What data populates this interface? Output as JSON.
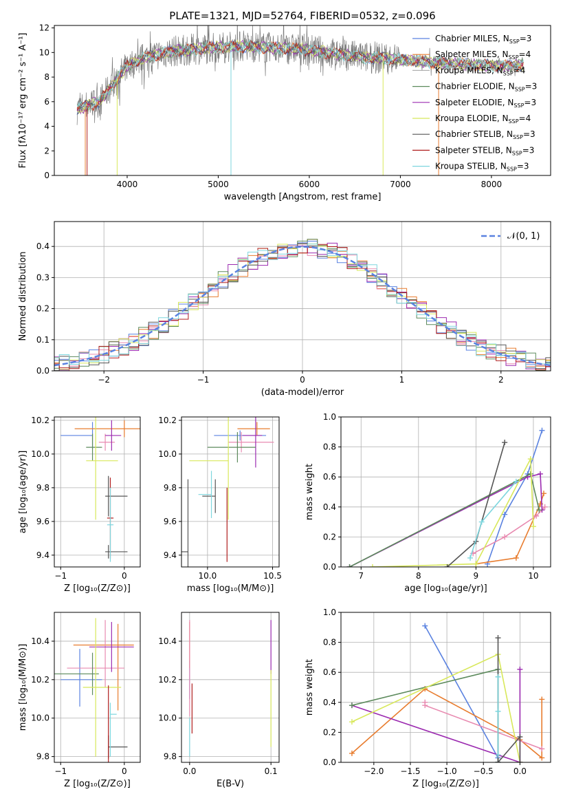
{
  "colors": {
    "chabrier_miles": "#5a82e0",
    "salpeter_miles": "#e87c2e",
    "kroupa_miles": "#b0b0b0",
    "chabrier_elodie": "#5c8a5c",
    "salpeter_elodie": "#9b2ab0",
    "kroupa_elodie": "#d8e85a",
    "chabrier_stelib": "#555555",
    "salpeter_stelib": "#b01c1c",
    "kroupa_stelib": "#7dd6de",
    "pink": "#e88ab0",
    "spectrum": "#7a7a7a"
  },
  "chart_data": [
    {
      "id": "spectrum",
      "type": "line",
      "title": "PLATE=1321, MJD=52764, FIBERID=0532, z=0.096",
      "xlabel": "wavelength [Angstrom, rest frame]",
      "ylabel": "Flux [fλ10⁻¹⁷ erg cm⁻² s⁻¹ A⁻¹]",
      "xlim": [
        3200,
        8650
      ],
      "ylim": [
        0,
        12.2
      ],
      "xticks": [
        "4000",
        "5000",
        "6000",
        "7000",
        "8000"
      ],
      "yticks": [
        "0",
        "2",
        "4",
        "6",
        "8",
        "10",
        "12"
      ],
      "legend_position": "right",
      "legend": [
        {
          "label": "Chabrier MILES, N",
          "sub": "SSP",
          "suffix": "=3",
          "color": "#5a82e0"
        },
        {
          "label": "Salpeter MILES, N",
          "sub": "SSP",
          "suffix": "=4",
          "color": "#e87c2e"
        },
        {
          "label": "Kroupa MILES, N",
          "sub": "SSP",
          "suffix": "=4",
          "color": "#b0b0b0"
        },
        {
          "label": "Chabrier ELODIE, N",
          "sub": "SSP",
          "suffix": "=3",
          "color": "#5c8a5c"
        },
        {
          "label": "Salpeter ELODIE, N",
          "sub": "SSP",
          "suffix": "=3",
          "color": "#9b2ab0"
        },
        {
          "label": "Kroupa ELODIE, N",
          "sub": "SSP",
          "suffix": "=4",
          "color": "#d8e85a"
        },
        {
          "label": "Chabrier STELIB, N",
          "sub": "SSP",
          "suffix": "=3",
          "color": "#555555"
        },
        {
          "label": "Salpeter STELIB, N",
          "sub": "SSP",
          "suffix": "=3",
          "color": "#b01c1c"
        },
        {
          "label": "Kroupa STELIB, N",
          "sub": "SSP",
          "suffix": "=3",
          "color": "#7dd6de"
        }
      ],
      "continuum": {
        "x": [
          3450,
          3700,
          3850,
          4000,
          4200,
          4500,
          4800,
          5000,
          5200,
          5500,
          5800,
          6000,
          6300,
          6600,
          6900,
          7200,
          7500,
          7800,
          8100,
          8350
        ],
        "y": [
          5.4,
          6.0,
          7.5,
          8.9,
          9.6,
          10.1,
          10.3,
          10.4,
          10.5,
          10.4,
          10.3,
          10.2,
          9.9,
          9.6,
          9.5,
          9.3,
          9.1,
          9.0,
          8.9,
          9.0
        ]
      }
    },
    {
      "id": "residuals",
      "type": "histogram",
      "xlabel": "(data-model)/error",
      "ylabel": "Normed distribution",
      "xlim": [
        -2.5,
        2.5
      ],
      "ylim": [
        0,
        0.48
      ],
      "xticks": [
        "−2",
        "−1",
        "0",
        "1",
        "2"
      ],
      "yticks": [
        "0.0",
        "0.1",
        "0.2",
        "0.3",
        "0.4"
      ],
      "legend": [
        "𝒩(0, 1)"
      ],
      "legend_position": "top-right",
      "grid": true
    },
    {
      "id": "age_vs_Z",
      "type": "scatter",
      "xlabel": "Z [log₁₀(Z/Z⊙)]",
      "ylabel": "age  [log₁₀(age/yr)]",
      "xlim": [
        -1.1,
        0.25
      ],
      "ylim": [
        9.33,
        10.22
      ],
      "xticks": [
        "−1",
        "0"
      ],
      "yticks": [
        "9.4",
        "9.6",
        "9.8",
        "10.0",
        "10.2"
      ],
      "grid": true,
      "points": [
        {
          "x": -0.5,
          "y": 10.11,
          "xerr": [
            0.5,
            0.0
          ],
          "yerr": [
            0.08,
            0.08
          ],
          "color": "#5a82e0"
        },
        {
          "x": 0.0,
          "y": 10.15,
          "xerr": [
            0.78,
            0.25
          ],
          "yerr": [
            0.05,
            0.05
          ],
          "color": "#e87c2e"
        },
        {
          "x": -0.3,
          "y": 10.07,
          "xerr": [
            0.1,
            0.15
          ],
          "yerr": [
            0.05,
            0.05
          ],
          "color": "#e88ab0"
        },
        {
          "x": -0.2,
          "y": 10.11,
          "xerr": [
            0.1,
            0.15
          ],
          "yerr": [
            0.09,
            0.09
          ],
          "color": "#9b2ab0"
        },
        {
          "x": -0.5,
          "y": 10.04,
          "xerr": [
            0.1,
            0.15
          ],
          "yerr": [
            0.08,
            0.08
          ],
          "color": "#5c8a5c"
        },
        {
          "x": -0.45,
          "y": 9.96,
          "xerr": [
            0.15,
            0.35
          ],
          "yerr": [
            0.35,
            0.35
          ],
          "color": "#d8e85a"
        },
        {
          "x": -0.25,
          "y": 9.75,
          "xerr": [
            0.05,
            0.3
          ],
          "yerr": [
            0.12,
            0.12
          ],
          "color": "#555555"
        },
        {
          "x": -0.25,
          "y": 9.42,
          "xerr": [
            0.05,
            0.3
          ],
          "yerr": [
            0.04,
            0.04
          ],
          "color": "#555555"
        },
        {
          "x": -0.22,
          "y": 9.62,
          "xerr": [
            0.05,
            0.05
          ],
          "yerr": [
            0.24,
            0.24
          ],
          "color": "#b01c1c"
        },
        {
          "x": -0.22,
          "y": 9.58,
          "xerr": [
            0.05,
            0.05
          ],
          "yerr": [
            0.22,
            0.22
          ],
          "color": "#7dd6de"
        }
      ]
    },
    {
      "id": "age_vs_mass",
      "type": "scatter",
      "xlabel": "mass [log₁₀(M/M⊙)]",
      "ylabel": "",
      "xlim": [
        9.8,
        10.55
      ],
      "ylim": [
        9.33,
        10.22
      ],
      "xticks": [
        "10.0",
        "10.5"
      ],
      "yticks": [
        "9.4",
        "9.6",
        "9.8",
        "10.0",
        "10.2"
      ],
      "grid": true,
      "points": [
        {
          "x": 10.25,
          "y": 10.11,
          "xerr": [
            0.2,
            0.2
          ],
          "yerr": [
            0.03,
            0.03
          ],
          "color": "#5a82e0"
        },
        {
          "x": 10.38,
          "y": 10.15,
          "xerr": [
            0.15,
            0.1
          ],
          "yerr": [
            0.04,
            0.04
          ],
          "color": "#e87c2e"
        },
        {
          "x": 10.26,
          "y": 10.07,
          "xerr": [
            0.1,
            0.25
          ],
          "yerr": [
            0.06,
            0.06
          ],
          "color": "#e88ab0"
        },
        {
          "x": 10.37,
          "y": 10.11,
          "xerr": [
            0.1,
            0.05
          ],
          "yerr": [
            0.19,
            0.19
          ],
          "color": "#9b2ab0"
        },
        {
          "x": 10.23,
          "y": 10.04,
          "xerr": [
            0.23,
            0.14
          ],
          "yerr": [
            0.09,
            0.09
          ],
          "color": "#5c8a5c"
        },
        {
          "x": 10.16,
          "y": 9.96,
          "xerr": [
            0.3,
            0.0
          ],
          "yerr": [
            0.35,
            0.35
          ],
          "color": "#d8e85a"
        },
        {
          "x": 10.06,
          "y": 9.75,
          "xerr": [
            0.1,
            0.0
          ],
          "yerr": [
            0.1,
            0.1
          ],
          "color": "#555555"
        },
        {
          "x": 9.85,
          "y": 9.42,
          "xerr": [
            0.05,
            0.0
          ],
          "yerr": [
            0.43,
            0.43
          ],
          "color": "#555555"
        },
        {
          "x": 10.15,
          "y": 9.58,
          "xerr": [
            0.0,
            0.0
          ],
          "yerr": [
            0.22,
            0.22
          ],
          "color": "#b01c1c"
        },
        {
          "x": 10.03,
          "y": 9.76,
          "xerr": [
            0.1,
            0.0
          ],
          "yerr": [
            0.14,
            0.14
          ],
          "color": "#7dd6de"
        }
      ]
    },
    {
      "id": "weight_vs_age",
      "type": "line",
      "xlabel": "age  [log₁₀(age/yr)]",
      "ylabel": "mass weight",
      "xlim": [
        6.65,
        10.3
      ],
      "ylim": [
        0,
        1.0
      ],
      "xticks": [
        "7",
        "8",
        "9",
        "10"
      ],
      "yticks": [
        "0.0",
        "0.2",
        "0.4",
        "0.6",
        "0.8",
        "1.0"
      ],
      "grid": true,
      "series": [
        {
          "color": "#5a82e0",
          "x": [
            9.2,
            9.5,
            9.9,
            10.15
          ],
          "y": [
            0.02,
            0.35,
            0.62,
            0.91
          ]
        },
        {
          "color": "#e87c2e",
          "x": [
            9.0,
            9.7,
            10.12,
            10.18
          ],
          "y": [
            0.02,
            0.06,
            0.42,
            0.49
          ]
        },
        {
          "color": "#e88ab0",
          "x": [
            8.95,
            9.5,
            10.05,
            10.2
          ],
          "y": [
            0.09,
            0.2,
            0.34,
            0.4
          ]
        },
        {
          "color": "#9b2ab0",
          "x": [
            6.8,
            9.9,
            10.12,
            10.15
          ],
          "y": [
            0.0,
            0.6,
            0.62,
            0.38
          ]
        },
        {
          "color": "#5c8a5c",
          "x": [
            6.8,
            9.95,
            10.1
          ],
          "y": [
            0.0,
            0.62,
            0.38
          ]
        },
        {
          "color": "#d8e85a",
          "x": [
            7.2,
            9.0,
            9.95,
            10.0
          ],
          "y": [
            0.0,
            0.02,
            0.72,
            0.27
          ]
        },
        {
          "color": "#555555",
          "x": [
            8.5,
            9.0,
            9.5
          ],
          "y": [
            0.0,
            0.17,
            0.83
          ]
        },
        {
          "color": "#7dd6de",
          "x": [
            8.9,
            9.1,
            9.7
          ],
          "y": [
            0.06,
            0.3,
            0.57
          ]
        }
      ]
    },
    {
      "id": "mass_vs_Z",
      "type": "scatter",
      "xlabel": "Z [log₁₀(Z/Z⊙)]",
      "ylabel": "mass [log₁₀(M/M⊙)]",
      "xlim": [
        -1.1,
        0.25
      ],
      "ylim": [
        9.77,
        10.55
      ],
      "xticks": [
        "−1",
        "0"
      ],
      "yticks": [
        "9.8",
        "10.0",
        "10.2",
        "10.4"
      ],
      "grid": true,
      "points": [
        {
          "x": -0.7,
          "y": 10.2,
          "xerr": [
            0.3,
            0.35
          ],
          "yerr": [
            0.14,
            0.16
          ],
          "color": "#5a82e0"
        },
        {
          "x": -0.1,
          "y": 10.38,
          "xerr": [
            0.7,
            0.25
          ],
          "yerr": [
            0.34,
            0.11
          ],
          "color": "#e87c2e"
        },
        {
          "x": -0.3,
          "y": 10.26,
          "xerr": [
            0.6,
            0.3
          ],
          "yerr": [
            0.1,
            0.25
          ],
          "color": "#e88ab0"
        },
        {
          "x": -0.2,
          "y": 10.37,
          "xerr": [
            0.35,
            0.35
          ],
          "yerr": [
            0.13,
            0.13
          ],
          "color": "#9b2ab0"
        },
        {
          "x": -0.5,
          "y": 10.23,
          "xerr": [
            0.6,
            0.1
          ],
          "yerr": [
            0.11,
            0.11
          ],
          "color": "#5c8a5c"
        },
        {
          "x": -0.45,
          "y": 10.16,
          "xerr": [
            0.2,
            0.4
          ],
          "yerr": [
            0.36,
            0.36
          ],
          "color": "#d8e85a"
        },
        {
          "x": -0.25,
          "y": 9.85,
          "xerr": [
            0.0,
            0.3
          ],
          "yerr": [
            0.06,
            0.06
          ],
          "color": "#555555"
        },
        {
          "x": -0.25,
          "y": 9.97,
          "xerr": [
            0.0,
            0.0
          ],
          "yerr": [
            0.2,
            0.2
          ],
          "color": "#b01c1c"
        },
        {
          "x": -0.22,
          "y": 10.02,
          "xerr": [
            0.0,
            0.1
          ],
          "yerr": [
            0.22,
            0.06
          ],
          "color": "#7dd6de"
        }
      ]
    },
    {
      "id": "ebv",
      "type": "scatter",
      "xlabel": "E(B-V)",
      "ylabel": "",
      "xlim": [
        -0.01,
        0.11
      ],
      "ylim": [
        9.77,
        10.55
      ],
      "xticks": [
        "0.0",
        "0.1"
      ],
      "yticks": [
        "9.8",
        "10.0",
        "10.2",
        "10.4"
      ],
      "grid": true,
      "points": [
        {
          "x": 0.0,
          "y": 10.2,
          "xerr": [
            0,
            0
          ],
          "yerr": [
            0.1,
            0.1
          ],
          "color": "#5a82e0"
        },
        {
          "x": 0.0,
          "y": 10.38,
          "xerr": [
            0,
            0
          ],
          "yerr": [
            0.12,
            0.12
          ],
          "color": "#e87c2e"
        },
        {
          "x": 0.0,
          "y": 10.26,
          "xerr": [
            0,
            0
          ],
          "yerr": [
            0.25,
            0.25
          ],
          "color": "#e88ab0"
        },
        {
          "x": 0.0,
          "y": 9.9,
          "xerr": [
            0,
            0
          ],
          "yerr": [
            0.1,
            0.1
          ],
          "color": "#7dd6de"
        },
        {
          "x": 0.003,
          "y": 10.05,
          "xerr": [
            0,
            0
          ],
          "yerr": [
            0.13,
            0.13
          ],
          "color": "#b01c1c"
        },
        {
          "x": 0.1,
          "y": 10.37,
          "xerr": [
            0,
            0
          ],
          "yerr": [
            0.14,
            0.14
          ],
          "color": "#9b2ab0"
        },
        {
          "x": 0.1,
          "y": 10.05,
          "xerr": [
            0,
            0
          ],
          "yerr": [
            0.2,
            0.2
          ],
          "color": "#d8e85a"
        }
      ]
    },
    {
      "id": "weight_vs_Z",
      "type": "line",
      "xlabel": "Z [log₁₀(Z/Z⊙)]",
      "ylabel": "mass weight",
      "xlim": [
        -2.45,
        0.42
      ],
      "ylim": [
        0,
        1.0
      ],
      "xticks": [
        "−2.0",
        "−1.5",
        "−1.0",
        "−0.5",
        "0.0"
      ],
      "yticks": [
        "0.0",
        "0.2",
        "0.4",
        "0.6",
        "0.8",
        "1.0"
      ],
      "grid": true,
      "series": [
        {
          "color": "#5a82e0",
          "x": [
            -1.3,
            -0.3,
            -0.3
          ],
          "y": [
            0.91,
            0.03,
            0.0
          ]
        },
        {
          "color": "#e87c2e",
          "x": [
            -2.3,
            -1.3,
            0.0,
            0.3,
            0.3
          ],
          "y": [
            0.06,
            0.49,
            0.15,
            0.03,
            0.42
          ]
        },
        {
          "color": "#e88ab0",
          "x": [
            -1.3,
            -1.3,
            0.3
          ],
          "y": [
            0.4,
            0.38,
            0.09
          ]
        },
        {
          "color": "#9b2ab0",
          "x": [
            -2.3,
            0.0,
            0.0
          ],
          "y": [
            0.38,
            0.0,
            0.62
          ]
        },
        {
          "color": "#5c8a5c",
          "x": [
            -2.3,
            -0.3,
            -0.3
          ],
          "y": [
            0.38,
            0.62,
            0.0
          ]
        },
        {
          "color": "#d8e85a",
          "x": [
            -2.3,
            -0.3,
            0.0
          ],
          "y": [
            0.27,
            0.72,
            0.0
          ]
        },
        {
          "color": "#555555",
          "x": [
            -0.3,
            -0.3,
            0.0,
            0.0
          ],
          "y": [
            0.83,
            0.0,
            0.17,
            0.0
          ]
        },
        {
          "color": "#7dd6de",
          "x": [
            -0.3,
            -0.3,
            -0.3
          ],
          "y": [
            0.57,
            0.34,
            0.05
          ]
        }
      ]
    }
  ]
}
